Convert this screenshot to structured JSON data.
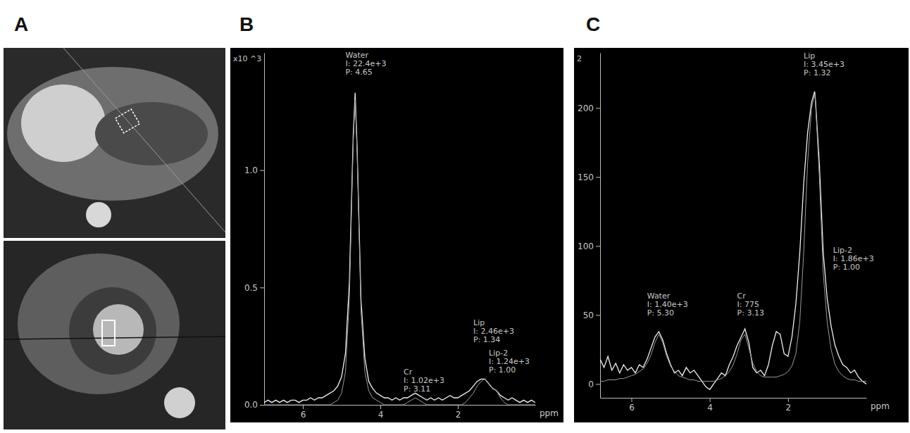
{
  "panel_labels": [
    "A",
    "B",
    "C"
  ],
  "chart_data": [
    {
      "type": "line",
      "xlabel": "ppm",
      "ylabel": "x10 ^3",
      "grid": false,
      "xlim": [
        7,
        0
      ],
      "ylim": [
        0,
        1.5
      ],
      "xticks": [
        6,
        4,
        2
      ],
      "yticks": [
        {
          "value": 0,
          "label": "0.0"
        },
        {
          "value": 0.5,
          "label": "0.5"
        },
        {
          "value": 1,
          "label": "1.0"
        }
      ],
      "x": [
        7.0,
        6.9,
        6.8,
        6.7,
        6.6,
        6.5,
        6.4,
        6.3,
        6.2,
        6.1,
        6.0,
        5.9,
        5.8,
        5.7,
        5.6,
        5.5,
        5.4,
        5.3,
        5.2,
        5.1,
        5.0,
        4.9,
        4.8,
        4.7,
        4.65,
        4.6,
        4.5,
        4.4,
        4.3,
        4.2,
        4.1,
        4.0,
        3.9,
        3.8,
        3.7,
        3.6,
        3.5,
        3.4,
        3.3,
        3.2,
        3.1,
        3.0,
        2.9,
        2.8,
        2.7,
        2.6,
        2.5,
        2.4,
        2.3,
        2.2,
        2.1,
        2.0,
        1.9,
        1.8,
        1.7,
        1.6,
        1.5,
        1.4,
        1.3,
        1.2,
        1.1,
        1.0,
        0.9,
        0.8,
        0.7,
        0.6,
        0.5,
        0.4,
        0.3,
        0.2,
        0.1,
        0.0
      ],
      "series": [
        {
          "color": "#f0f0f0",
          "line_style": "solid",
          "values": [
            0.01,
            0.02,
            0.01,
            0.02,
            0.01,
            0.02,
            0.01,
            0.02,
            0.02,
            0.01,
            0.02,
            0.02,
            0.03,
            0.02,
            0.03,
            0.03,
            0.04,
            0.05,
            0.06,
            0.08,
            0.12,
            0.22,
            0.52,
            1.15,
            1.33,
            1.1,
            0.45,
            0.2,
            0.1,
            0.07,
            0.05,
            0.04,
            0.03,
            0.03,
            0.02,
            0.03,
            0.02,
            0.03,
            0.03,
            0.04,
            0.05,
            0.04,
            0.03,
            0.02,
            0.03,
            0.02,
            0.03,
            0.02,
            0.03,
            0.04,
            0.03,
            0.03,
            0.04,
            0.05,
            0.06,
            0.08,
            0.1,
            0.11,
            0.11,
            0.09,
            0.07,
            0.06,
            0.04,
            0.03,
            0.02,
            0.03,
            0.02,
            0.01,
            0.02,
            0.01,
            0.02,
            0.01
          ]
        },
        {
          "color": "#9a9a9a",
          "line_style": "solid",
          "values": [
            0,
            0,
            0,
            0,
            0,
            0,
            0,
            0,
            0,
            0,
            0,
            0,
            0,
            0,
            0,
            0,
            0,
            0,
            0.01,
            0.02,
            0.05,
            0.14,
            0.45,
            1.12,
            1.3,
            1.08,
            0.4,
            0.14,
            0.06,
            0.03,
            0.02,
            0.01,
            0,
            0,
            0,
            0,
            0,
            0,
            0.01,
            0.02,
            0.03,
            0.02,
            0.01,
            0,
            0,
            0,
            0,
            0,
            0,
            0,
            0,
            0,
            0,
            0.01,
            0.03,
            0.05,
            0.08,
            0.1,
            0.11,
            0.09,
            0.07,
            0.06,
            0.03,
            0.01,
            0,
            0,
            0,
            0,
            0,
            0,
            0,
            0
          ]
        }
      ],
      "annotations": [
        {
          "lines": [
            "Water",
            "I: 22.4e+3",
            "P: 4.65"
          ],
          "x": 4.9,
          "y": 1.48
        },
        {
          "lines": [
            "Cr",
            "I: 1.02e+3",
            "P: 3.11"
          ],
          "x": 3.4,
          "y": 0.13
        },
        {
          "lines": [
            "Lip",
            "I: 2.46e+3",
            "P: 1.34"
          ],
          "x": 1.6,
          "y": 0.34
        },
        {
          "lines": [
            "Lip-2",
            "I: 1.24e+3",
            "P: 1.00"
          ],
          "x": 1.2,
          "y": 0.21
        }
      ]
    },
    {
      "type": "line",
      "xlabel": "ppm",
      "ylabel": "2",
      "grid": false,
      "xlim": [
        6.8,
        0
      ],
      "ylim": [
        -10,
        240
      ],
      "xticks": [
        6,
        4,
        2
      ],
      "yticks": [
        0,
        50,
        100,
        150,
        200
      ],
      "x": [
        6.8,
        6.7,
        6.6,
        6.5,
        6.4,
        6.3,
        6.2,
        6.1,
        6.0,
        5.9,
        5.8,
        5.7,
        5.6,
        5.5,
        5.4,
        5.3,
        5.2,
        5.1,
        5.0,
        4.9,
        4.8,
        4.7,
        4.6,
        4.5,
        4.4,
        4.3,
        4.2,
        4.1,
        4.0,
        3.9,
        3.8,
        3.7,
        3.6,
        3.5,
        3.4,
        3.3,
        3.2,
        3.1,
        3.0,
        2.9,
        2.8,
        2.7,
        2.6,
        2.5,
        2.4,
        2.3,
        2.2,
        2.1,
        2.0,
        1.9,
        1.8,
        1.7,
        1.6,
        1.5,
        1.4,
        1.32,
        1.3,
        1.2,
        1.1,
        1.0,
        0.9,
        0.8,
        0.7,
        0.6,
        0.5,
        0.4,
        0.3,
        0.2,
        0.1,
        0.0
      ],
      "series": [
        {
          "color": "#f0f0f0",
          "line_style": "solid",
          "values": [
            18,
            12,
            20,
            10,
            15,
            8,
            14,
            10,
            12,
            8,
            14,
            12,
            18,
            26,
            34,
            38,
            32,
            22,
            14,
            8,
            10,
            6,
            12,
            8,
            10,
            6,
            2,
            -2,
            -4,
            0,
            4,
            8,
            6,
            14,
            20,
            28,
            34,
            40,
            30,
            12,
            8,
            10,
            6,
            14,
            28,
            38,
            36,
            22,
            20,
            34,
            58,
            95,
            145,
            182,
            204,
            212,
            206,
            160,
            95,
            62,
            42,
            28,
            20,
            14,
            12,
            8,
            10,
            5,
            2,
            0
          ]
        },
        {
          "color": "#9a9a9a",
          "line_style": "solid",
          "values": [
            2,
            2,
            3,
            3,
            3,
            4,
            4,
            5,
            6,
            7,
            9,
            11,
            15,
            21,
            30,
            36,
            30,
            20,
            13,
            9,
            6,
            5,
            4,
            3,
            3,
            2,
            2,
            2,
            2,
            2,
            3,
            4,
            6,
            9,
            14,
            22,
            32,
            36,
            26,
            15,
            9,
            6,
            5,
            5,
            5,
            5,
            6,
            7,
            9,
            13,
            22,
            45,
            95,
            160,
            200,
            210,
            205,
            150,
            80,
            45,
            25,
            14,
            9,
            6,
            4,
            3,
            3,
            2,
            2,
            2
          ]
        }
      ],
      "annotations": [
        {
          "lines": [
            "Water",
            "I: 1.40e+3",
            "P: 5.30"
          ],
          "x": 5.6,
          "y": 62
        },
        {
          "lines": [
            "Cr",
            "I: 775",
            "P: 3.13"
          ],
          "x": 3.3,
          "y": 62
        },
        {
          "lines": [
            "Lip",
            "I: 3.45e+3",
            "P: 1.32"
          ],
          "x": 1.6,
          "y": 236
        },
        {
          "lines": [
            "Lip-2",
            "I: 1.86e+3",
            "P: 1.00"
          ],
          "x": 0.85,
          "y": 95
        }
      ]
    }
  ]
}
